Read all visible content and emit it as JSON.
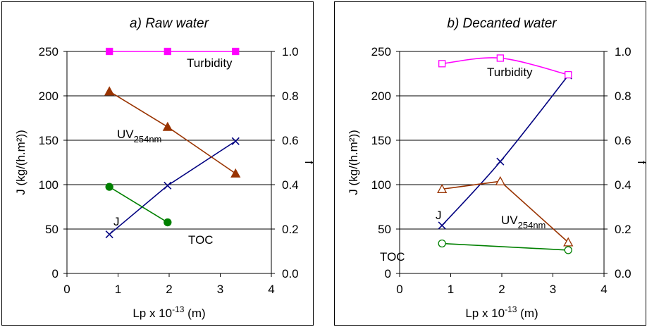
{
  "chart_data": [
    {
      "type": "line",
      "title": "a) Raw water",
      "xlabel": {
        "main": "Lp x 10",
        "sup": "-13",
        "tail": " (m)"
      },
      "ylabel": "J (kg/(h.m²))",
      "y2label": "f",
      "xlim": [
        0,
        4
      ],
      "ylim": [
        0,
        250
      ],
      "y2lim": [
        0,
        1.0
      ],
      "x_ticks": [
        "0",
        "1",
        "2",
        "3",
        "4"
      ],
      "y_ticks": [
        "0",
        "50",
        "100",
        "150",
        "200",
        "250"
      ],
      "y2_ticks": [
        "0.0",
        "0.2",
        "0.4",
        "0.6",
        "0.8",
        "1.0"
      ],
      "grid": "horizontal",
      "series": [
        {
          "name": "J",
          "axis": "left",
          "marker": "x",
          "color": "#000080",
          "smooth": false,
          "x": [
            0.83,
            1.97,
            3.3
          ],
          "y": [
            44,
            99,
            149
          ]
        },
        {
          "name": "Turbidity",
          "axis": "right",
          "marker": "square-filled",
          "color": "#FF00FF",
          "smooth": false,
          "x": [
            0.83,
            1.97,
            3.3
          ],
          "y": [
            1.0,
            1.0,
            1.0
          ]
        },
        {
          "name": "UV254nm",
          "axis": "right",
          "marker": "triangle-filled",
          "color": "#993300",
          "smooth": false,
          "x": [
            0.83,
            1.97,
            3.3
          ],
          "y": [
            0.82,
            0.66,
            0.45
          ]
        },
        {
          "name": "TOC",
          "axis": "right",
          "marker": "circle-filled",
          "color": "#008000",
          "smooth": false,
          "x": [
            0.83,
            1.97
          ],
          "y": [
            0.39,
            0.23
          ]
        }
      ],
      "annotations": [
        {
          "text": "Turbidity",
          "sub": ""
        },
        {
          "text": "UV",
          "sub": "254nm"
        },
        {
          "text": "J",
          "sub": ""
        },
        {
          "text": "TOC",
          "sub": ""
        }
      ]
    },
    {
      "type": "line",
      "title": "b) Decanted water",
      "xlabel": {
        "main": "Lp x 10",
        "sup": "-13",
        "tail": " (m)"
      },
      "ylabel": "J (kg/(h.m²))",
      "y2label": "f",
      "xlim": [
        0,
        4
      ],
      "ylim": [
        0,
        250
      ],
      "y2lim": [
        0,
        1.0
      ],
      "x_ticks": [
        "0",
        "1",
        "2",
        "3",
        "4"
      ],
      "y_ticks": [
        "0",
        "50",
        "100",
        "150",
        "200",
        "250"
      ],
      "y2_ticks": [
        "0.0",
        "0.2",
        "0.4",
        "0.6",
        "0.8",
        "1.0"
      ],
      "grid": "horizontal",
      "series": [
        {
          "name": "J",
          "axis": "left",
          "marker": "x",
          "color": "#000080",
          "smooth": true,
          "x": [
            0.83,
            1.97,
            3.3
          ],
          "y": [
            54,
            126,
            223
          ]
        },
        {
          "name": "Turbidity",
          "axis": "right",
          "marker": "square-open",
          "color": "#FF00FF",
          "smooth": true,
          "x": [
            0.83,
            1.97,
            3.3
          ],
          "y": [
            0.945,
            0.97,
            0.895
          ]
        },
        {
          "name": "UV254nm",
          "axis": "right",
          "marker": "triangle-open",
          "color": "#993300",
          "smooth": false,
          "x": [
            0.83,
            1.97,
            3.3
          ],
          "y": [
            0.38,
            0.415,
            0.14
          ]
        },
        {
          "name": "TOC",
          "axis": "right",
          "marker": "circle-open",
          "color": "#008000",
          "smooth": false,
          "x": [
            0.83,
            3.3
          ],
          "y": [
            0.135,
            0.105
          ]
        }
      ],
      "annotations": [
        {
          "text": "Turbidity",
          "sub": ""
        },
        {
          "text": "J",
          "sub": ""
        },
        {
          "text": "UV",
          "sub": "254nm"
        },
        {
          "text": "TOC",
          "sub": ""
        }
      ]
    }
  ]
}
